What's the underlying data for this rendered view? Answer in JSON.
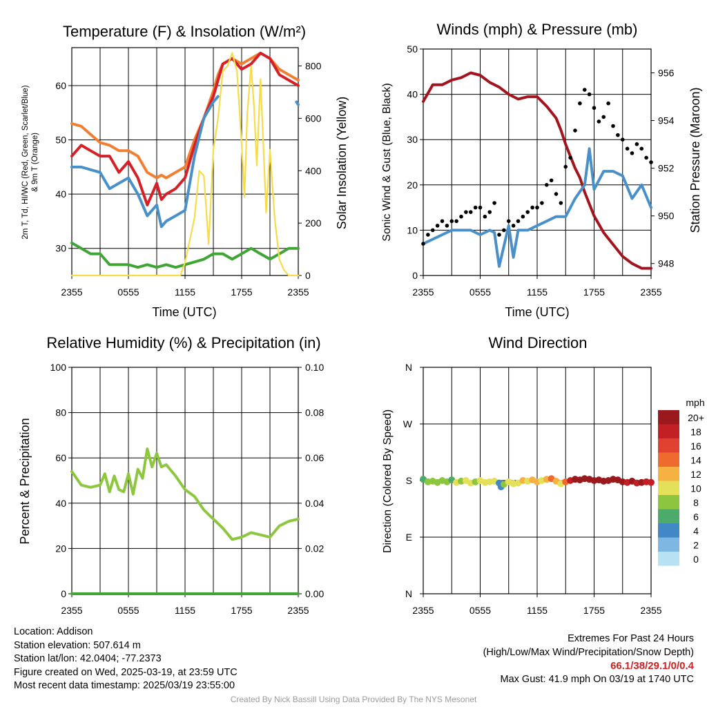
{
  "panels": {
    "temp": {
      "title": "Temperature (F) & Insolation (W/m²)",
      "ylabel_left_line1": "2m T, Td, HI/WC (Red, Green, Scarlet/Blue)",
      "ylabel_left_line2": "& 9m T (Orange)",
      "ylabel_right": "Solar Insolation (Yellow)",
      "xlabel": "Time (UTC)"
    },
    "wind": {
      "title": "Winds (mph) & Pressure (mb)",
      "ylabel_left": "Sonic Wind & Gust (Blue, Black)",
      "ylabel_right": "Station Pressure (Maroon)",
      "xlabel": "Time (UTC)"
    },
    "rh": {
      "title": "Relative Humidity (%) & Precipitation (in)",
      "ylabel_left": "Percent & Precipitation"
    },
    "dir": {
      "title": "Wind Direction",
      "ylabel_left": "Direction (Colored By Speed)",
      "legend_unit": "mph"
    }
  },
  "info": {
    "location": "Location: Addison",
    "elevation": "Station elevation: 507.614 m",
    "latlon": "Station lat/lon: 42.0404; -77.2373",
    "created": "Figure created on Wed, 2025-03-19, at 23:59 UTC",
    "recent": "Most recent data timestamp: 2025/03/19 23:55:00"
  },
  "extremes": {
    "title": "Extremes For Past 24 Hours",
    "subtitle": "(High/Low/Max Wind/Precipitation/Snow Depth)",
    "values": "66.1/38/29.1/0/0.4",
    "gust": "Max Gust: 41.9 mph On 03/19 at 1740 UTC"
  },
  "credit": "Created By Nick Bassill Using Data Provided By The NYS Mesonet",
  "chart_data": [
    {
      "type": "line",
      "title": "Temperature (F) & Insolation (W/m²)",
      "xlabel": "Time (UTC)",
      "x_ticks": [
        "2355",
        "0555",
        "1155",
        "1755",
        "2355"
      ],
      "x_hours": [
        0,
        3,
        6,
        9,
        12,
        15,
        18,
        21,
        24
      ],
      "ylim": [
        25,
        67
      ],
      "y_ticks": [
        30,
        40,
        50,
        60
      ],
      "y2lim": [
        0,
        870
      ],
      "y2_ticks": [
        0,
        200,
        400,
        600,
        800
      ],
      "series": [
        {
          "name": "9m T",
          "axis": "left",
          "color": "#f07f32",
          "x": [
            0,
            1,
            2,
            3,
            4,
            5,
            6,
            7,
            8,
            9,
            9.5,
            10,
            11,
            12,
            13,
            14,
            15,
            15.5,
            16,
            17,
            18,
            19,
            20,
            21,
            22,
            23,
            24
          ],
          "y": [
            53,
            52.5,
            51,
            49.5,
            49,
            48,
            48,
            47,
            44,
            43,
            43.5,
            43,
            44,
            45,
            50,
            54,
            59,
            62,
            64,
            65,
            64,
            65,
            66,
            65,
            63,
            62,
            61
          ]
        },
        {
          "name": "2m T",
          "axis": "left",
          "color": "#d62027",
          "x": [
            0,
            1,
            2,
            3,
            4,
            5,
            6,
            7,
            8,
            9,
            9.5,
            10,
            11,
            12,
            13,
            14,
            15,
            15.5,
            16,
            17,
            18,
            19,
            20,
            21,
            22,
            23,
            24
          ],
          "y": [
            47,
            49,
            48,
            47,
            47,
            44,
            46,
            43,
            38,
            42,
            39,
            40,
            41,
            43,
            49,
            54,
            58,
            61,
            64,
            65,
            63,
            64,
            66,
            65,
            62,
            61,
            60
          ]
        },
        {
          "name": "HI/WC",
          "axis": "left",
          "color": "#4a90c8",
          "x": [
            0,
            1,
            2,
            3,
            4,
            5,
            6,
            7,
            8,
            9,
            9.5,
            10,
            11,
            12,
            13,
            14,
            15,
            15.5
          ],
          "y": [
            45,
            45,
            44.5,
            44,
            41,
            42,
            43,
            40,
            36,
            38,
            34,
            35,
            36,
            37,
            47,
            54,
            57,
            58
          ]
        },
        {
          "name": "HI/WC",
          "axis": "left",
          "color": "#4a90c8",
          "x": [
            23.8,
            24
          ],
          "y": [
            57,
            56.5
          ]
        },
        {
          "name": "Td",
          "axis": "left",
          "color": "#3fa535",
          "x": [
            0,
            1,
            2,
            3,
            4,
            5,
            6,
            7,
            8,
            9,
            10,
            11,
            12,
            13,
            14,
            15,
            16,
            17,
            18,
            19,
            20,
            21,
            22,
            23,
            24
          ],
          "y": [
            31,
            30,
            29,
            29,
            27,
            27,
            27,
            26.5,
            27,
            26.5,
            27,
            26.5,
            27,
            27.5,
            28,
            29,
            29,
            28,
            29,
            30,
            29,
            28,
            29,
            30,
            30
          ]
        },
        {
          "name": "Solar Insolation",
          "axis": "right",
          "color": "#f7dc4a",
          "x": [
            0,
            11.5,
            12,
            13,
            13.5,
            14,
            14.5,
            15,
            15.5,
            16,
            16.5,
            17,
            17.5,
            18,
            18.3,
            18.6,
            19,
            19.3,
            19.6,
            20,
            20.3,
            20.6,
            21,
            21.5,
            22,
            22.5,
            23,
            24
          ],
          "y": [
            0,
            0,
            50,
            220,
            400,
            380,
            120,
            480,
            600,
            780,
            800,
            850,
            780,
            500,
            300,
            620,
            800,
            650,
            420,
            750,
            500,
            240,
            480,
            220,
            60,
            20,
            0,
            0
          ]
        }
      ]
    },
    {
      "type": "line",
      "title": "Winds (mph) & Pressure (mb)",
      "xlabel": "Time (UTC)",
      "x_ticks": [
        "2355",
        "0555",
        "1155",
        "1755",
        "2355"
      ],
      "ylim": [
        0,
        50
      ],
      "y_ticks": [
        0,
        10,
        20,
        30,
        40,
        50
      ],
      "y2lim": [
        947.5,
        957
      ],
      "y2_ticks": [
        948,
        950,
        952,
        954,
        956
      ],
      "series": [
        {
          "name": "Station Pressure",
          "axis": "right",
          "color": "#a3141e",
          "x": [
            0,
            1,
            2,
            3,
            4,
            5,
            6,
            7,
            8,
            9,
            10,
            11,
            12,
            13,
            14,
            14.5,
            15,
            15.5,
            16,
            16.5,
            17,
            17.5,
            18,
            19,
            20,
            21,
            22,
            23,
            24
          ],
          "y": [
            954.8,
            955.5,
            955.5,
            955.7,
            955.8,
            956,
            955.9,
            955.6,
            955.4,
            955.1,
            954.9,
            955,
            955,
            954.6,
            954.1,
            953.6,
            953,
            952.5,
            952,
            951.6,
            951,
            950.5,
            950,
            949.3,
            948.8,
            948.3,
            948,
            947.8,
            947.8
          ]
        },
        {
          "name": "Sonic Wind",
          "axis": "left",
          "color": "#4a90c8",
          "x": [
            0,
            1,
            2,
            3,
            4,
            5,
            6,
            7,
            7.5,
            8,
            9,
            9.5,
            10,
            11,
            12,
            13,
            14,
            15,
            16,
            17,
            17.5,
            18,
            19,
            20,
            21,
            22,
            23,
            24
          ],
          "y": [
            7,
            8,
            9,
            10,
            10,
            10,
            9,
            10,
            9.5,
            2,
            11,
            4,
            10,
            10,
            11,
            12,
            13,
            13,
            17,
            20,
            28,
            19,
            23,
            23,
            22,
            17,
            20,
            15
          ]
        },
        {
          "name": "Gust",
          "axis": "left",
          "color": "#000000",
          "marker": "dot",
          "x": [
            0,
            0.5,
            1,
            1.5,
            2,
            2.5,
            3,
            3.5,
            4,
            4.5,
            5,
            5.5,
            6,
            6.5,
            7,
            7.5,
            8,
            8.5,
            9,
            9.5,
            10,
            10.5,
            11,
            11.5,
            12,
            12.5,
            13,
            13.5,
            14,
            14.5,
            15,
            15.5,
            16,
            16.5,
            17,
            17.5,
            18,
            18.5,
            19,
            19.5,
            20,
            20.5,
            21,
            21.5,
            22,
            22.5,
            23,
            23.5,
            24
          ],
          "y": [
            7,
            9,
            10,
            11,
            12,
            11,
            12,
            12,
            13,
            14,
            14,
            15,
            15,
            13,
            14,
            16,
            9,
            10,
            12,
            11,
            12,
            13,
            14,
            15,
            15,
            16,
            20,
            21,
            18,
            16,
            24,
            26,
            32,
            38,
            41,
            40,
            37,
            34,
            35,
            38,
            33,
            31,
            30,
            28,
            27,
            29,
            28,
            26,
            25
          ]
        }
      ]
    },
    {
      "type": "line",
      "title": "Relative Humidity (%) & Precipitation (in)",
      "xlabel": "",
      "x_ticks": [
        "2355",
        "0555",
        "1155",
        "1755",
        "2355"
      ],
      "ylim": [
        0,
        100
      ],
      "y_ticks": [
        0,
        20,
        40,
        60,
        80,
        100
      ],
      "y2lim": [
        0,
        0.1
      ],
      "y2_ticks": [
        "0.00",
        "0.02",
        "0.04",
        "0.06",
        "0.08",
        "0.10"
      ],
      "series": [
        {
          "name": "Relative Humidity",
          "axis": "left",
          "color": "#8dc63f",
          "x": [
            0,
            1,
            2,
            3,
            3.5,
            4,
            4.5,
            5,
            5.5,
            6,
            6.5,
            7,
            7.5,
            8,
            8.5,
            9,
            9.5,
            10,
            11,
            12,
            13,
            14,
            15,
            16,
            17,
            18,
            19,
            20,
            21,
            22,
            23,
            24
          ],
          "y": [
            54,
            48,
            47,
            48,
            53,
            45,
            52,
            46,
            45,
            53,
            44,
            55,
            51,
            64,
            56,
            62,
            56,
            57,
            52,
            46,
            43,
            37,
            33,
            29,
            24,
            25,
            27,
            26,
            25,
            30,
            32,
            33
          ]
        },
        {
          "name": "Precipitation",
          "axis": "right",
          "color": "#3fa535",
          "x": [
            0,
            24
          ],
          "y": [
            0,
            0
          ]
        }
      ]
    },
    {
      "type": "scatter",
      "title": "Wind Direction",
      "xlabel": "",
      "x_ticks": [
        "2355",
        "0555",
        "1155",
        "1755",
        "2355"
      ],
      "y_ticks": [
        "N",
        "E",
        "S",
        "W",
        "N"
      ],
      "y_values_deg": [
        0,
        90,
        180,
        270,
        360
      ],
      "legend_title": "mph",
      "legend": [
        {
          "label": "0",
          "color": "#b8e1f4"
        },
        {
          "label": "2",
          "color": "#7cb8e2"
        },
        {
          "label": "4",
          "color": "#4189c4"
        },
        {
          "label": "6",
          "color": "#4caa6a"
        },
        {
          "label": "8",
          "color": "#8cc63f"
        },
        {
          "label": "10",
          "color": "#e5e05a"
        },
        {
          "label": "12",
          "color": "#f6b143"
        },
        {
          "label": "14",
          "color": "#ee6a2d"
        },
        {
          "label": "16",
          "color": "#e14131"
        },
        {
          "label": "18",
          "color": "#c32026"
        },
        {
          "label": "20+",
          "color": "#99191c"
        }
      ],
      "points": {
        "x": [
          0,
          0.5,
          1,
          1.5,
          2,
          2.5,
          3,
          3.5,
          4,
          4.5,
          5,
          5.5,
          6,
          6.5,
          7,
          7.5,
          8,
          8.2,
          8.5,
          9,
          9.5,
          10,
          10.5,
          11,
          11.5,
          12,
          12.5,
          13,
          13.5,
          14,
          14.5,
          15,
          15.5,
          16,
          16.5,
          17,
          17.5,
          18,
          18.5,
          19,
          19.5,
          20,
          20.5,
          21,
          21.5,
          22,
          22.5,
          23,
          23.5,
          24
        ],
        "dir": [
          182,
          178,
          179,
          177,
          180,
          178,
          181,
          177,
          179,
          180,
          176,
          178,
          180,
          177,
          178,
          179,
          176,
          170,
          174,
          178,
          175,
          176,
          180,
          179,
          181,
          178,
          180,
          182,
          183,
          179,
          175,
          178,
          180,
          182,
          181,
          183,
          182,
          180,
          181,
          179,
          180,
          182,
          181,
          178,
          177,
          179,
          176,
          177,
          178,
          177
        ],
        "speed": [
          6,
          7,
          8,
          8,
          7,
          8,
          6,
          9,
          8,
          9,
          10,
          8,
          9,
          10,
          10,
          9,
          4,
          3,
          8,
          10,
          9,
          10,
          11,
          10,
          12,
          11,
          10,
          12,
          14,
          11,
          10,
          13,
          17,
          19,
          20,
          21,
          20,
          21,
          20,
          21,
          20,
          20,
          19,
          20,
          18,
          19,
          18,
          19,
          17,
          18
        ]
      }
    }
  ]
}
